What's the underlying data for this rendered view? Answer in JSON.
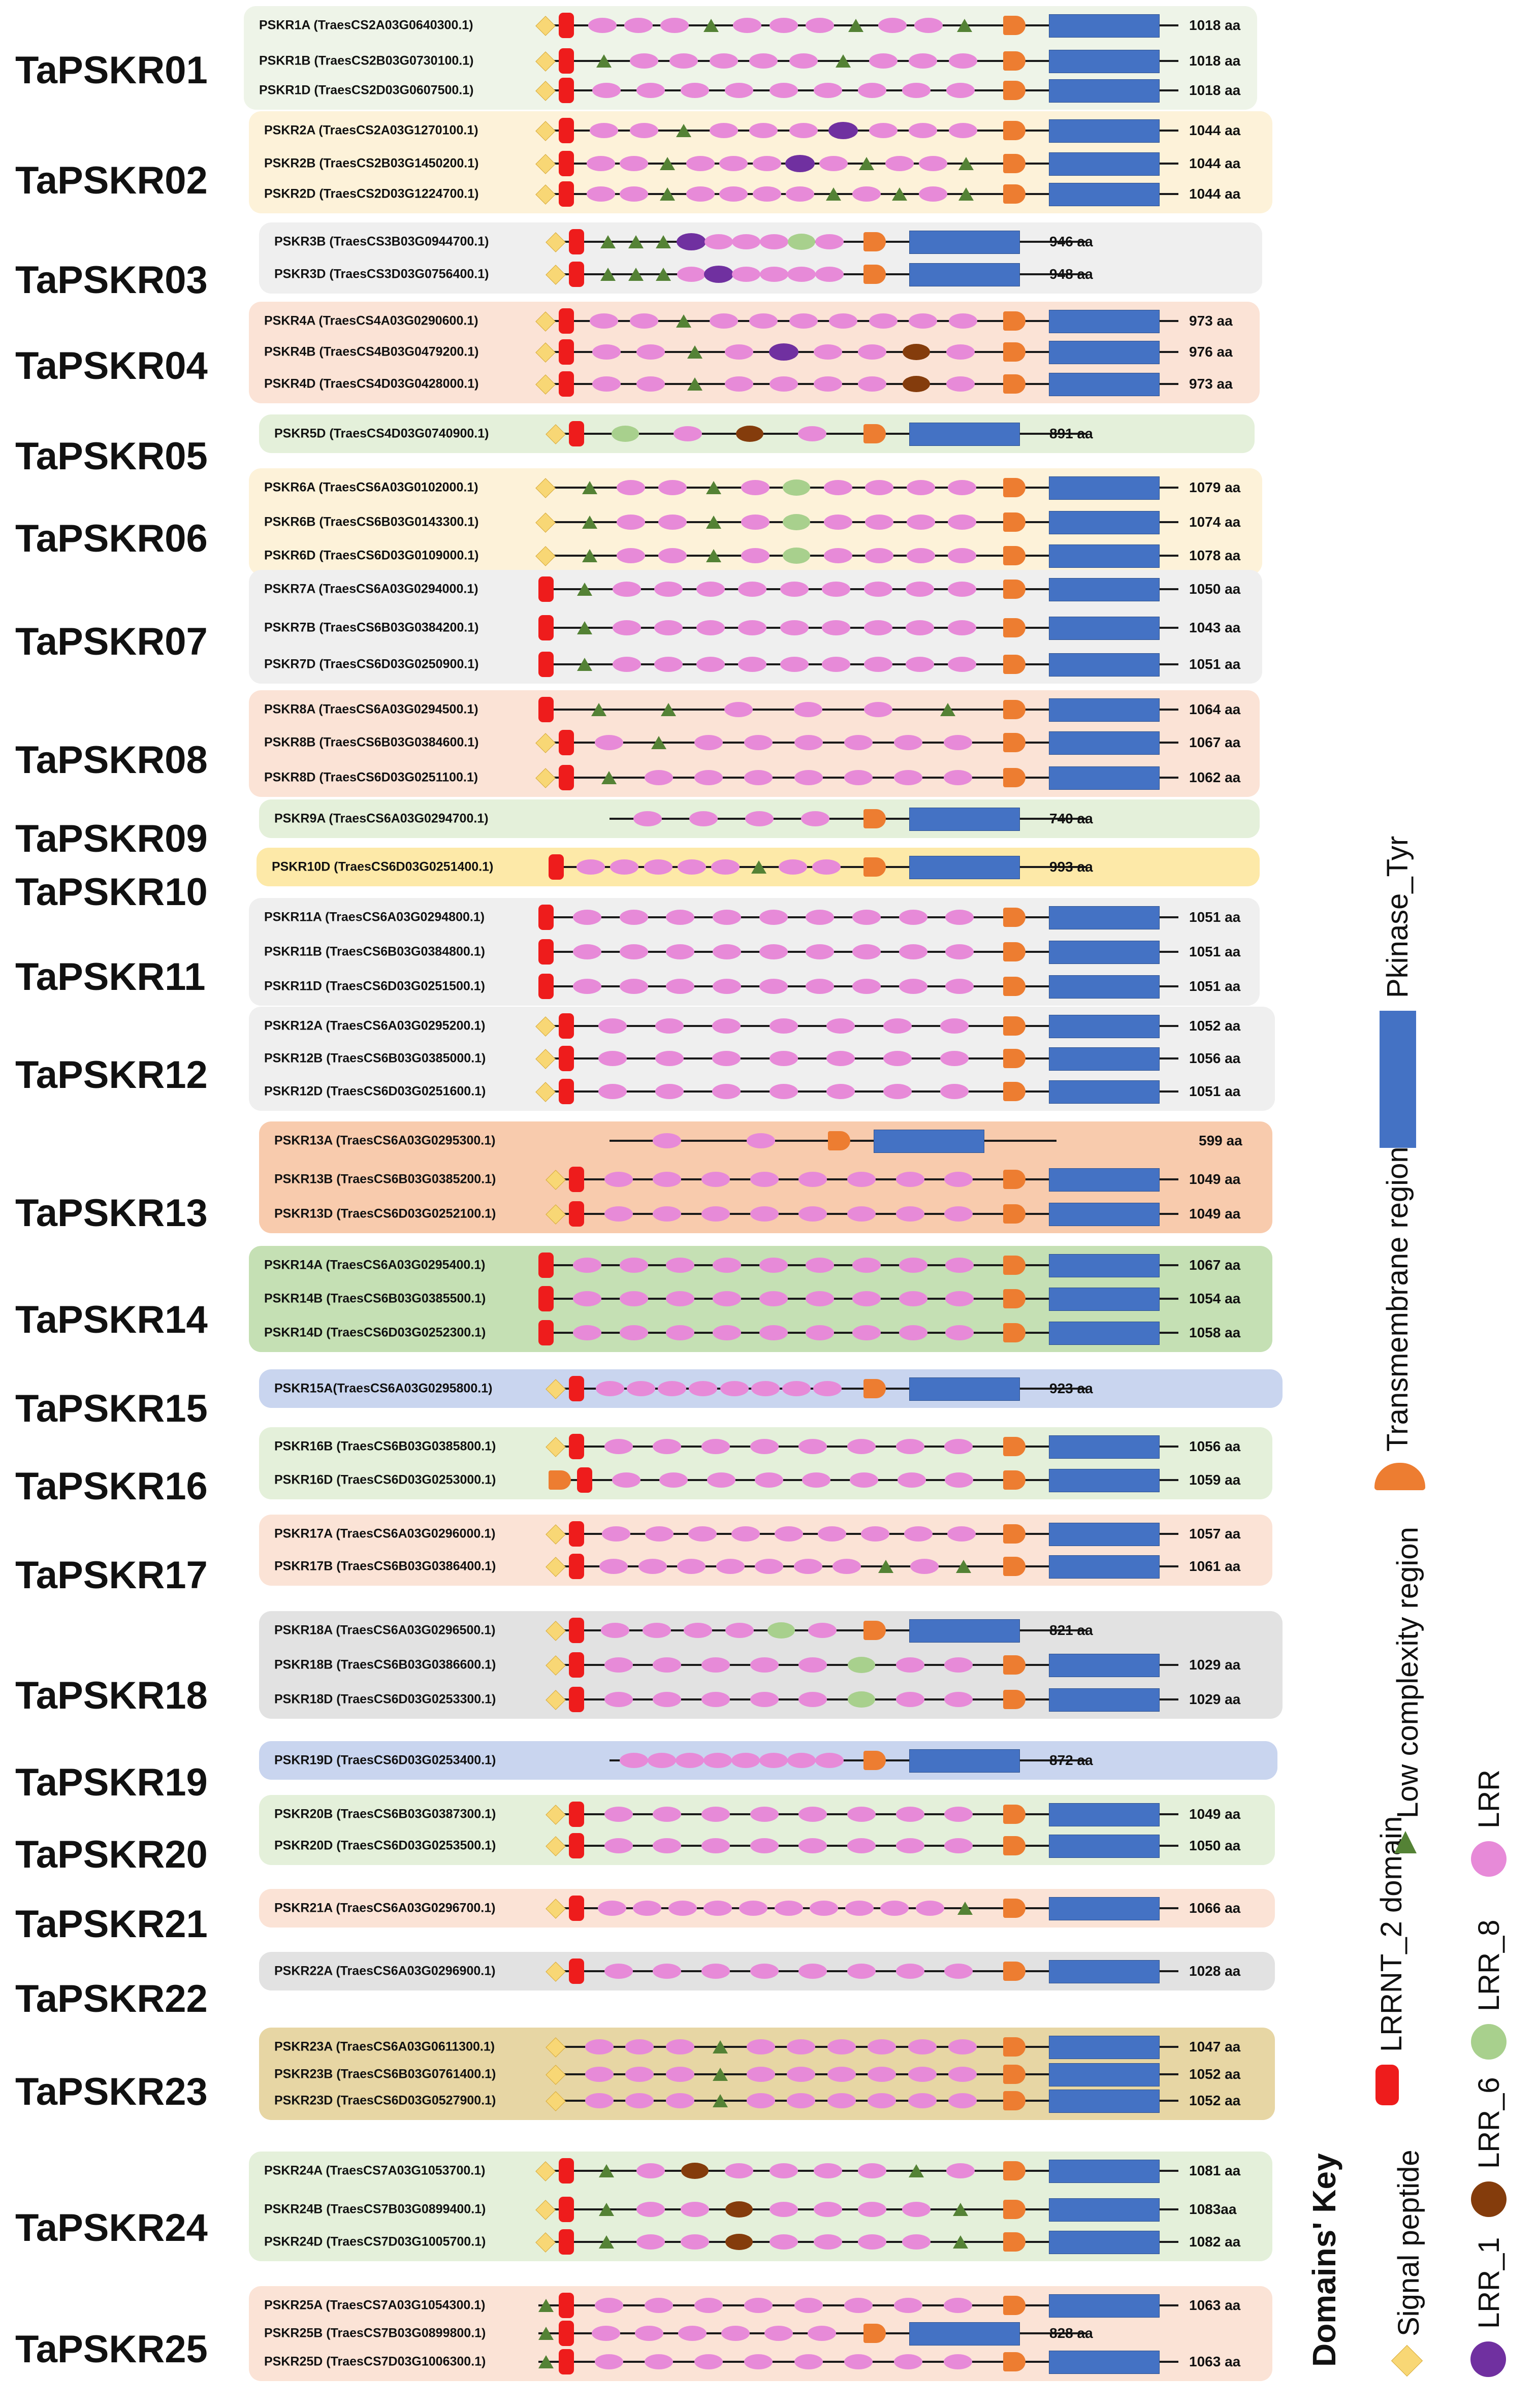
{
  "legend": {
    "title": "Domains' Key",
    "items": [
      {
        "key": "sp",
        "label": "Signal peptide"
      },
      {
        "key": "lrr1",
        "label": "LRR_1"
      },
      {
        "key": "lrrnt",
        "label": "LRRNT_2 domain"
      },
      {
        "key": "lrr6",
        "label": "LRR_6"
      },
      {
        "key": "lrr8",
        "label": "LRR_8"
      },
      {
        "key": "lcr",
        "label": "Low complexity region"
      },
      {
        "key": "lrr",
        "label": "LRR"
      },
      {
        "key": "tm",
        "label": "Transmembrane region"
      },
      {
        "key": "pk",
        "label": "Pkinase_Tyr"
      }
    ]
  },
  "colors": {
    "signal_peptide": "#f8d775",
    "lrrnt2": "#ee1c1c",
    "lrr": "#e78ad8",
    "lrr_1": "#7030a0",
    "lrr_6": "#843c0c",
    "lrr_8": "#a8d08d",
    "low_complexity": "#548235",
    "transmembrane": "#ed7d31",
    "pkinase_tyr": "#4472c4"
  },
  "groups": [
    {
      "name": "TaPSKR01",
      "bg": "#eef4e8",
      "members": [
        {
          "id": "PSKR1A (TraesCS2A03G0640300.1)",
          "length": "1018 aa",
          "sp": true,
          "lrrnt": 1,
          "domains": "L L L C L L L C L L C",
          "gap": true
        },
        {
          "id": "PSKR1B (TraesCS2B03G0730100.1)",
          "length": "1018 aa",
          "sp": true,
          "lrrnt": 1,
          "domains": "C L L L L L C L L L",
          "gap": true
        },
        {
          "id": "PSKR1D (TraesCS2D03G0607500.1)",
          "length": "1018 aa",
          "sp": true,
          "lrrnt": 1,
          "domains": "L L L L L L L L L",
          "gap": true
        }
      ]
    },
    {
      "name": "TaPSKR02",
      "bg": "#fdf2d9",
      "members": [
        {
          "id": "PSKR2A (TraesCS2A03G1270100.1)",
          "length": "1044 aa",
          "sp": true,
          "lrrnt": 1,
          "domains": "L L C L L L 1 L L L",
          "gap": true
        },
        {
          "id": "PSKR2B (TraesCS2B03G1450200.1)",
          "length": "1044 aa",
          "sp": true,
          "lrrnt": 1,
          "domains": "L L C L L L 1 L C L L C",
          "gap": true
        },
        {
          "id": "PSKR2D (TraesCS2D03G1224700.1)",
          "length": "1044 aa",
          "sp": true,
          "lrrnt": 1,
          "domains": "L L C L L L L C L C L C",
          "gap": true
        }
      ]
    },
    {
      "name": "TaPSKR03",
      "bg": "#efefef",
      "members": [
        {
          "id": "PSKR3B (TraesCS3B03G0944700.1)",
          "length": "946 aa",
          "sp": true,
          "lrrnt": 1,
          "domains": "C C C 1 L L L 8 L",
          "gap": false
        },
        {
          "id": "PSKR3D (TraesCS3D03G0756400.1)",
          "length": "948 aa",
          "sp": true,
          "lrrnt": 1,
          "domains": "C C C L 1 L L L L",
          "gap": false
        }
      ]
    },
    {
      "name": "TaPSKR04",
      "bg": "#fbe3d6",
      "members": [
        {
          "id": "PSKR4A (TraesCS4A03G0290600.1)",
          "length": "973 aa",
          "sp": true,
          "lrrnt": 1,
          "domains": "L L C L L L L L L L",
          "gap": true
        },
        {
          "id": "PSKR4B (TraesCS4B03G0479200.1)",
          "length": "976 aa",
          "sp": true,
          "lrrnt": 1,
          "domains": "L L C L 1 L L 6 L",
          "gap": true
        },
        {
          "id": "PSKR4D (TraesCS4D03G0428000.1)",
          "length": "973 aa",
          "sp": true,
          "lrrnt": 1,
          "domains": "L L C L L L L 6 L",
          "gap": true
        }
      ]
    },
    {
      "name": "TaPSKR05",
      "bg": "#e4f0da",
      "members": [
        {
          "id": "PSKR5D (TraesCS4D03G0740900.1)",
          "length": "891 aa",
          "sp": true,
          "lrrnt": 1,
          "domains": "8 L 6 L",
          "gap": false
        }
      ]
    },
    {
      "name": "TaPSKR06",
      "bg": "#fdf2d9",
      "members": [
        {
          "id": "PSKR6A (TraesCS6A03G0102000.1)",
          "length": "1079 aa",
          "sp": true,
          "lrrnt": 0,
          "domains": "C L L C L 8 L L L L",
          "gap": true
        },
        {
          "id": "PSKR6B (TraesCS6B03G0143300.1)",
          "length": "1074 aa",
          "sp": true,
          "lrrnt": 0,
          "domains": "C L L C L 8 L L L L",
          "gap": true
        },
        {
          "id": "PSKR6D (TraesCS6D03G0109000.1)",
          "length": "1078 aa",
          "sp": true,
          "lrrnt": 0,
          "domains": "C L L C L 8 L L L L",
          "gap": true
        }
      ]
    },
    {
      "name": "TaPSKR07",
      "bg": "#efefef",
      "members": [
        {
          "id": "PSKR7A (TraesCS6A03G0294000.1)",
          "length": "1050 aa",
          "sp": false,
          "lrrnt": 1,
          "domains": "C L L L L L L L L L",
          "gap": true
        },
        {
          "id": "PSKR7B (TraesCS6B03G0384200.1)",
          "length": "1043 aa",
          "sp": false,
          "lrrnt": 1,
          "domains": "C L L L L L L L L L",
          "gap": true
        },
        {
          "id": "PSKR7D (TraesCS6D03G0250900.1)",
          "length": "1051 aa",
          "sp": false,
          "lrrnt": 1,
          "domains": "C L L L L L L L L L",
          "gap": true
        }
      ]
    },
    {
      "name": "TaPSKR08",
      "bg": "#fbe3d6",
      "members": [
        {
          "id": "PSKR8A (TraesCS6A03G0294500.1)",
          "length": "1064 aa",
          "sp": false,
          "lrrnt": 1,
          "domains": "C C L L L C",
          "gap": true
        },
        {
          "id": "PSKR8B (TraesCS6B03G0384600.1)",
          "length": "1067 aa",
          "sp": true,
          "lrrnt": 1,
          "domains": "L C L L L L L L",
          "gap": true
        },
        {
          "id": "PSKR8D (TraesCS6D03G0251100.1)",
          "length": "1062 aa",
          "sp": true,
          "lrrnt": 1,
          "domains": "C L L L L L L L",
          "gap": true
        }
      ]
    },
    {
      "name": "TaPSKR09",
      "bg": "#e4f0da",
      "members": [
        {
          "id": "PSKR9A (TraesCS6A03G0294700.1)",
          "length": "740 aa",
          "sp": false,
          "lrrnt": 0,
          "domains": "L L L L",
          "gap": false
        }
      ]
    },
    {
      "name": "TaPSKR10",
      "bg": "#fde9a8",
      "members": [
        {
          "id": "PSKR10D (TraesCS6D03G0251400.1)",
          "length": "993 aa",
          "sp": false,
          "lrrnt": 1,
          "domains": "L L L L L C L L",
          "gap": false
        }
      ]
    },
    {
      "name": "TaPSKR11",
      "bg": "#efefef",
      "members": [
        {
          "id": "PSKR11A (TraesCS6A03G0294800.1)",
          "length": "1051 aa",
          "sp": false,
          "lrrnt": 1,
          "domains": "L L L L L L L L L",
          "gap": true
        },
        {
          "id": "PSKR11B (TraesCS6B03G0384800.1)",
          "length": "1051 aa",
          "sp": false,
          "lrrnt": 1,
          "domains": "L L L L L L L L L",
          "gap": true
        },
        {
          "id": "PSKR11D (TraesCS6D03G0251500.1)",
          "length": "1051 aa",
          "sp": false,
          "lrrnt": 1,
          "domains": "L L L L L L L L L",
          "gap": true
        }
      ]
    },
    {
      "name": "TaPSKR12",
      "bg": "#efefef",
      "members": [
        {
          "id": "PSKR12A (TraesCS6A03G0295200.1)",
          "length": "1052 aa",
          "sp": true,
          "lrrnt": 1,
          "domains": "L L L L L L L",
          "gap": true
        },
        {
          "id": "PSKR12B (TraesCS6B03G0385000.1)",
          "length": "1056 aa",
          "sp": true,
          "lrrnt": 1,
          "domains": "L L L L L L L",
          "gap": true
        },
        {
          "id": "PSKR12D (TraesCS6D03G0251600.1)",
          "length": "1051 aa",
          "sp": true,
          "lrrnt": 1,
          "domains": "L L L L L L L",
          "gap": true
        }
      ]
    },
    {
      "name": "TaPSKR13",
      "bg": "#f8cbad",
      "members": [
        {
          "id": "PSKR13A (TraesCS6A03G0295300.1)",
          "length": "599 aa",
          "sp": false,
          "lrrnt": 0,
          "domains": "L L",
          "gap": false,
          "trail": true
        },
        {
          "id": "PSKR13B (TraesCS6B03G0385200.1)",
          "length": "1049 aa",
          "sp": true,
          "lrrnt": 1,
          "domains": "L L L L L L L L",
          "gap": true
        },
        {
          "id": "PSKR13D (TraesCS6D03G0252100.1)",
          "length": "1049 aa",
          "sp": true,
          "lrrnt": 1,
          "domains": "L L L L L L L L",
          "gap": true
        }
      ]
    },
    {
      "name": "TaPSKR14",
      "bg": "#c5e0b4",
      "members": [
        {
          "id": "PSKR14A (TraesCS6A03G0295400.1)",
          "length": "1067 aa",
          "sp": false,
          "lrrnt": 1,
          "domains": "L L L L L L L L L",
          "gap": true
        },
        {
          "id": "PSKR14B (TraesCS6B03G0385500.1)",
          "length": "1054 aa",
          "sp": false,
          "lrrnt": 1,
          "domains": "L L L L L L L L L",
          "gap": true
        },
        {
          "id": "PSKR14D (TraesCS6D03G0252300.1)",
          "length": "1058 aa",
          "sp": false,
          "lrrnt": 1,
          "domains": "L L L L L L L L L",
          "gap": true
        }
      ]
    },
    {
      "name": "TaPSKR15",
      "bg": "#c9d5ef",
      "members": [
        {
          "id": "PSKR15A(TraesCS6A03G0295800.1)",
          "length": "923 aa",
          "sp": true,
          "lrrnt": 1,
          "domains": "L L L L L L L L",
          "gap": false
        }
      ]
    },
    {
      "name": "TaPSKR16",
      "bg": "#e4f0da",
      "members": [
        {
          "id": "PSKR16B (TraesCS6B03G0385800.1)",
          "length": "1056 aa",
          "sp": true,
          "lrrnt": 1,
          "domains": "L L L L L L L L",
          "gap": true
        },
        {
          "id": "PSKR16D (TraesCS6D03G0253000.1)",
          "length": "1059 aa",
          "sp": false,
          "lrrnt": 1,
          "tmfirst": true,
          "domains": "L L L L L L L L",
          "gap": true
        }
      ]
    },
    {
      "name": "TaPSKR17",
      "bg": "#fbe3d6",
      "members": [
        {
          "id": "PSKR17A (TraesCS6A03G0296000.1)",
          "length": "1057 aa",
          "sp": true,
          "lrrnt": 1,
          "domains": "L L L L L L L L L",
          "gap": true
        },
        {
          "id": "PSKR17B (TraesCS6B03G0386400.1)",
          "length": "1061 aa",
          "sp": true,
          "lrrnt": 1,
          "domains": "L L L L L L L C L C",
          "gap": true
        }
      ]
    },
    {
      "name": "TaPSKR18",
      "bg": "#e2e2e2",
      "members": [
        {
          "id": "PSKR18A (TraesCS6A03G0296500.1)",
          "length": "821 aa",
          "sp": true,
          "lrrnt": 1,
          "domains": "L L L L 8 L",
          "gap": false
        },
        {
          "id": "PSKR18B (TraesCS6B03G0386600.1)",
          "length": "1029 aa",
          "sp": true,
          "lrrnt": 1,
          "domains": "L L L L L 8 L L",
          "gap": true
        },
        {
          "id": "PSKR18D (TraesCS6D03G0253300.1)",
          "length": "1029 aa",
          "sp": true,
          "lrrnt": 1,
          "domains": "L L L L L 8 L L",
          "gap": true
        }
      ]
    },
    {
      "name": "TaPSKR19",
      "bg": "#c9d5ef",
      "members": [
        {
          "id": "PSKR19D (TraesCS6D03G0253400.1)",
          "length": "872 aa",
          "sp": false,
          "lrrnt": 0,
          "domains": "L L L L L L L L",
          "gap": false
        }
      ]
    },
    {
      "name": "TaPSKR20",
      "bg": "#e4f0da",
      "members": [
        {
          "id": "PSKR20B (TraesCS6B03G0387300.1)",
          "length": "1049 aa",
          "sp": true,
          "lrrnt": 1,
          "domains": "L L L L L L L L",
          "gap": true
        },
        {
          "id": "PSKR20D (TraesCS6D03G0253500.1)",
          "length": "1050 aa",
          "sp": true,
          "lrrnt": 1,
          "domains": "L L L L L L L L",
          "gap": true
        }
      ]
    },
    {
      "name": "TaPSKR21",
      "bg": "#fbe3d6",
      "members": [
        {
          "id": "PSKR21A (TraesCS6A03G0296700.1)",
          "length": "1066 aa",
          "sp": true,
          "lrrnt": 1,
          "domains": "L L L L L L L L L L C",
          "gap": true
        }
      ]
    },
    {
      "name": "TaPSKR22",
      "bg": "#e2e2e2",
      "members": [
        {
          "id": "PSKR22A (TraesCS6A03G0296900.1)",
          "length": "1028 aa",
          "sp": true,
          "lrrnt": 1,
          "domains": "L L L L L L L L",
          "gap": true
        }
      ]
    },
    {
      "name": "TaPSKR23",
      "bg": "#e7d6a4",
      "members": [
        {
          "id": "PSKR23A (TraesCS6A03G0611300.1)",
          "length": "1047 aa",
          "sp": true,
          "lrrnt": 0,
          "domains": "L L L C L L L L L L",
          "gap": true
        },
        {
          "id": "PSKR23B (TraesCS6B03G0761400.1)",
          "length": "1052 aa",
          "sp": true,
          "lrrnt": 0,
          "domains": "L L L C L L L L L L",
          "gap": true
        },
        {
          "id": "PSKR23D (TraesCS6D03G0527900.1)",
          "length": "1052 aa",
          "sp": true,
          "lrrnt": 0,
          "domains": "L L L C L L L L L L",
          "gap": true
        }
      ]
    },
    {
      "name": "TaPSKR24",
      "bg": "#e4f0da",
      "members": [
        {
          "id": "PSKR24A (TraesCS7A03G1053700.1)",
          "length": "1081 aa",
          "sp": true,
          "lrrnt": 1,
          "domains": "C L 6 L L L L C L",
          "gap": true
        },
        {
          "id": "PSKR24B (TraesCS7B03G0899400.1)",
          "length": "1083aa",
          "sp": true,
          "lrrnt": 1,
          "domains": "C L L 6 L L L L C",
          "gap": true
        },
        {
          "id": "PSKR24D (TraesCS7D03G1005700.1)",
          "length": "1082 aa",
          "sp": true,
          "lrrnt": 1,
          "domains": "C L L 6 L L L L C",
          "gap": true
        }
      ]
    },
    {
      "name": "TaPSKR25",
      "bg": "#fbe3d6",
      "members": [
        {
          "id": "PSKR25A (TraesCS7A03G1054300.1)",
          "length": "1063 aa",
          "sp": false,
          "lrrnt": 1,
          "lcrfirst": true,
          "domains": "L L L L L L L L",
          "gap": true
        },
        {
          "id": "PSKR25B (TraesCS7B03G0899800.1)",
          "length": "828 aa",
          "sp": false,
          "lrrnt": 1,
          "lcrfirst": true,
          "domains": "L L L L L L",
          "gap": false
        },
        {
          "id": "PSKR25D (TraesCS7D03G1006300.1)",
          "length": "1063 aa",
          "sp": false,
          "lrrnt": 1,
          "lcrfirst": true,
          "domains": "L L L L L L L L",
          "gap": true
        }
      ]
    }
  ]
}
